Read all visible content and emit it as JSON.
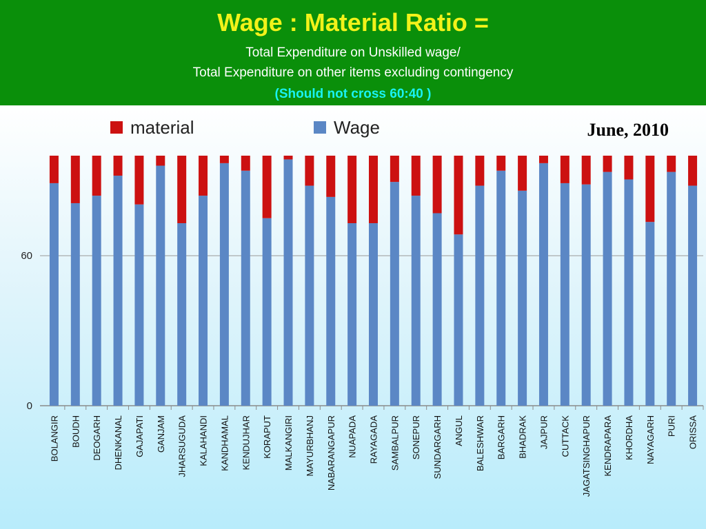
{
  "header": {
    "title": "Wage : Material Ratio =",
    "line1": "Total Expenditure on Unskilled wage/",
    "line2": "Total Expenditure on other items excluding contingency",
    "line3": "(Should not cross 60:40 )",
    "background": "#0a8f0a",
    "title_color": "#f2f21a",
    "highlight_color": "#19f2f2"
  },
  "date_label": "June, 2010",
  "chart_data": {
    "type": "bar",
    "stacked": true,
    "title": "",
    "xlabel": "",
    "ylabel": "",
    "ylim": [
      0,
      100
    ],
    "yticks": [
      0,
      60
    ],
    "grid": true,
    "legend_position": "top",
    "categories": [
      "BOLANGIR",
      "BOUDH",
      "DEOGARH",
      "DHENKANAL",
      "GAJAPATI",
      "GANJAM",
      "JHARSUGUDA",
      "KALAHANDI",
      "KANDHAMAL",
      "KENDUJHAR",
      "KORAPUT",
      "MALKANGIRI",
      "MAYURBHANJ",
      "NABARANGAPUR",
      "NUAPADA",
      "RAYAGADA",
      "SAMBALPUR",
      "SONEPUR",
      "SUNDARGARH",
      "ANGUL",
      "BALESHWAR",
      "BARGARH",
      "BHADRAK",
      "JAJPUR",
      "CUTTACK",
      "JAGATSINGHAPUR",
      "KENDRAPARA",
      "KHORDHA",
      "NAYAGARH",
      "PURI",
      "ORISSA"
    ],
    "series": [
      {
        "name": "Wage",
        "color": "#5b87c5",
        "values": [
          89,
          81,
          84,
          92,
          80.5,
          96,
          73,
          84,
          97,
          94,
          75,
          98.5,
          88,
          83.5,
          73,
          73,
          89.5,
          84,
          77,
          68.5,
          88,
          94,
          86,
          97,
          89,
          88.5,
          93.5,
          90.5,
          73.5,
          93.5,
          88
        ]
      },
      {
        "name": "material",
        "color": "#cc1111",
        "values": [
          11,
          19,
          16,
          8,
          19.5,
          4,
          27,
          16,
          3,
          6,
          25,
          1.5,
          12,
          16.5,
          27,
          27,
          10.5,
          16,
          23,
          31.5,
          12,
          6,
          14,
          3,
          11,
          11.5,
          6.5,
          9.5,
          26.5,
          6.5,
          12
        ]
      }
    ]
  }
}
